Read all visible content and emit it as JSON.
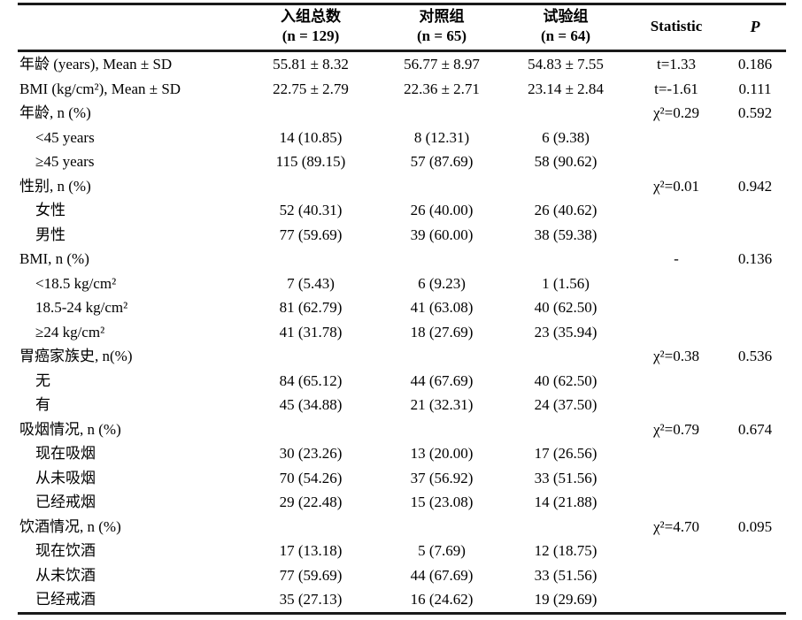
{
  "table": {
    "columns": {
      "label_header": "",
      "total": {
        "title": "入组总数",
        "subtitle": "(n = 129)"
      },
      "control": {
        "title": "对照组",
        "subtitle": "(n = 65)"
      },
      "trial": {
        "title": "试验组",
        "subtitle": "(n = 64)"
      },
      "statistic": "Statistic",
      "p": "P"
    },
    "rows": [
      {
        "label": "年龄 (years), Mean ± SD",
        "indent": false,
        "cells": [
          "55.81 ± 8.32",
          "56.77 ± 8.97",
          "54.83 ± 7.55",
          "t=1.33",
          "0.186"
        ]
      },
      {
        "label": "BMI (kg/cm²), Mean ± SD",
        "indent": false,
        "cells": [
          "22.75 ± 2.79",
          "22.36 ± 2.71",
          "23.14 ± 2.84",
          "t=-1.61",
          "0.111"
        ]
      },
      {
        "label": "年龄, n (%)",
        "indent": false,
        "cells": [
          "",
          "",
          "",
          "χ²=0.29",
          "0.592"
        ]
      },
      {
        "label": "<45 years",
        "indent": true,
        "cells": [
          "14 (10.85)",
          "8 (12.31)",
          "6 (9.38)",
          "",
          ""
        ]
      },
      {
        "label": "≥45 years",
        "indent": true,
        "cells": [
          "115 (89.15)",
          "57 (87.69)",
          "58 (90.62)",
          "",
          ""
        ]
      },
      {
        "label": "性别, n (%)",
        "indent": false,
        "cells": [
          "",
          "",
          "",
          "χ²=0.01",
          "0.942"
        ]
      },
      {
        "label": "女性",
        "indent": true,
        "cells": [
          "52 (40.31)",
          "26 (40.00)",
          "26 (40.62)",
          "",
          ""
        ]
      },
      {
        "label": "男性",
        "indent": true,
        "cells": [
          "77 (59.69)",
          "39 (60.00)",
          "38 (59.38)",
          "",
          ""
        ]
      },
      {
        "label": "BMI, n (%)",
        "indent": false,
        "cells": [
          "",
          "",
          "",
          "-",
          "0.136"
        ]
      },
      {
        "label": "<18.5 kg/cm²",
        "indent": true,
        "cells": [
          "7 (5.43)",
          "6 (9.23)",
          "1 (1.56)",
          "",
          ""
        ]
      },
      {
        "label": "18.5-24 kg/cm²",
        "indent": true,
        "cells": [
          "81 (62.79)",
          "41 (63.08)",
          "40 (62.50)",
          "",
          ""
        ]
      },
      {
        "label": "≥24 kg/cm²",
        "indent": true,
        "cells": [
          "41 (31.78)",
          "18 (27.69)",
          "23 (35.94)",
          "",
          ""
        ]
      },
      {
        "label": "胃癌家族史, n(%)",
        "indent": false,
        "cells": [
          "",
          "",
          "",
          "χ²=0.38",
          "0.536"
        ]
      },
      {
        "label": "无",
        "indent": true,
        "cells": [
          "84 (65.12)",
          "44 (67.69)",
          "40 (62.50)",
          "",
          ""
        ]
      },
      {
        "label": "有",
        "indent": true,
        "cells": [
          "45 (34.88)",
          "21 (32.31)",
          "24 (37.50)",
          "",
          ""
        ]
      },
      {
        "label": "吸烟情况, n (%)",
        "indent": false,
        "cells": [
          "",
          "",
          "",
          "χ²=0.79",
          "0.674"
        ]
      },
      {
        "label": "现在吸烟",
        "indent": true,
        "cells": [
          "30 (23.26)",
          "13 (20.00)",
          "17 (26.56)",
          "",
          ""
        ]
      },
      {
        "label": "从未吸烟",
        "indent": true,
        "cells": [
          "70 (54.26)",
          "37 (56.92)",
          "33 (51.56)",
          "",
          ""
        ]
      },
      {
        "label": "已经戒烟",
        "indent": true,
        "cells": [
          "29 (22.48)",
          "15 (23.08)",
          "14 (21.88)",
          "",
          ""
        ]
      },
      {
        "label": "饮酒情况, n (%)",
        "indent": false,
        "cells": [
          "",
          "",
          "",
          "χ²=4.70",
          "0.095"
        ]
      },
      {
        "label": "现在饮酒",
        "indent": true,
        "cells": [
          "17 (13.18)",
          "5 (7.69)",
          "12 (18.75)",
          "",
          ""
        ]
      },
      {
        "label": "从未饮酒",
        "indent": true,
        "cells": [
          "77 (59.69)",
          "44 (67.69)",
          "33 (51.56)",
          "",
          ""
        ]
      },
      {
        "label": "已经戒酒",
        "indent": true,
        "cells": [
          "35 (27.13)",
          "16 (24.62)",
          "19 (29.69)",
          "",
          ""
        ]
      }
    ]
  }
}
